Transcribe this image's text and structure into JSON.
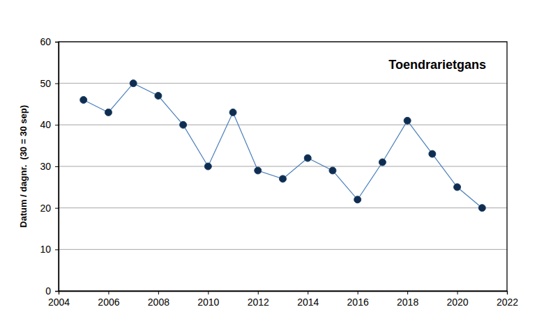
{
  "chart_data": {
    "type": "line",
    "title": "Toendrarietgans",
    "y_label": "Datum / dagnr.  (30 = 30 sep)",
    "x": [
      2005,
      2006,
      2007,
      2008,
      2009,
      2010,
      2011,
      2012,
      2013,
      2014,
      2015,
      2016,
      2017,
      2018,
      2019,
      2020,
      2021
    ],
    "series": [
      {
        "name": "Toendrarietgans",
        "color": "#4a7ebb",
        "marker": "circle",
        "line_style": "solid",
        "values": [
          46,
          43,
          50,
          47,
          40,
          30,
          43,
          29,
          27,
          32,
          29,
          22,
          31,
          41,
          33,
          25,
          20
        ]
      }
    ],
    "xlim": [
      2004,
      2022
    ],
    "xticks": [
      2004,
      2006,
      2008,
      2010,
      2012,
      2014,
      2016,
      2018,
      2020,
      2022
    ],
    "ylim": [
      0,
      60
    ],
    "yticks": [
      0,
      10,
      20,
      30,
      40,
      50,
      60
    ],
    "grid": true
  }
}
